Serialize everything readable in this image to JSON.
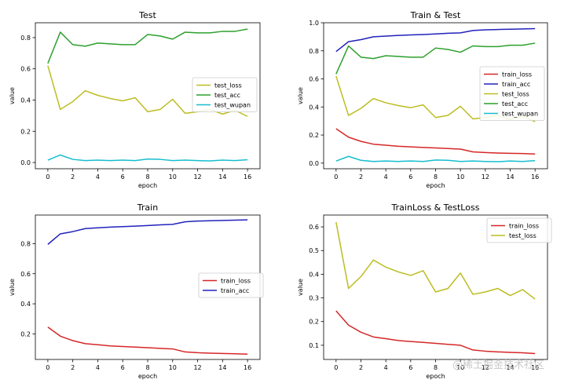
{
  "colors": {
    "train_loss": "#d62728",
    "train_acc": "#2222bb",
    "test_loss": "#bcbd22",
    "test_acc": "#2ca02c",
    "test_wupan": "#17becf"
  },
  "watermark": "@稀土掘金技术社区",
  "chart_data": [
    {
      "type": "line",
      "title": "Test",
      "xlabel": "epoch",
      "ylabel": "value",
      "xlim": [
        -1,
        17
      ],
      "ylim": [
        -0.04,
        0.895
      ],
      "xticks": [
        0,
        2,
        4,
        6,
        8,
        10,
        12,
        14,
        16
      ],
      "yticks": [
        0.0,
        0.2,
        0.4,
        0.6,
        0.8
      ],
      "ytick_labels": [
        "0.0",
        "0.2",
        "0.4",
        "0.6",
        "0.8"
      ],
      "legend_position": "center-right",
      "x": [
        0,
        1,
        2,
        3,
        4,
        5,
        6,
        7,
        8,
        9,
        10,
        11,
        12,
        13,
        14,
        15,
        16
      ],
      "series": [
        {
          "name": "test_loss",
          "color_key": "test_loss",
          "values": [
            0.62,
            0.34,
            0.39,
            0.46,
            0.43,
            0.41,
            0.395,
            0.415,
            0.325,
            0.34,
            0.405,
            0.315,
            0.325,
            0.34,
            0.31,
            0.335,
            0.295
          ]
        },
        {
          "name": "test_acc",
          "color_key": "test_acc",
          "values": [
            0.635,
            0.835,
            0.755,
            0.745,
            0.765,
            0.76,
            0.755,
            0.755,
            0.82,
            0.81,
            0.79,
            0.835,
            0.83,
            0.83,
            0.84,
            0.84,
            0.855
          ]
        },
        {
          "name": "test_wupan",
          "color_key": "test_wupan",
          "values": [
            0.015,
            0.048,
            0.02,
            0.012,
            0.015,
            0.012,
            0.015,
            0.012,
            0.022,
            0.02,
            0.012,
            0.015,
            0.012,
            0.01,
            0.015,
            0.012,
            0.018
          ]
        }
      ]
    },
    {
      "type": "line",
      "title": "Train & Test",
      "xlabel": "epoch",
      "ylabel": "value",
      "xlim": [
        -1,
        17
      ],
      "ylim": [
        -0.04,
        1.0
      ],
      "xticks": [
        0,
        2,
        4,
        6,
        8,
        10,
        12,
        14,
        16
      ],
      "yticks": [
        0.0,
        0.2,
        0.4,
        0.6,
        0.8,
        1.0
      ],
      "ytick_labels": [
        "0.0",
        "0.2",
        "0.4",
        "0.6",
        "0.8",
        "1.0"
      ],
      "legend_position": "center-right",
      "x": [
        0,
        1,
        2,
        3,
        4,
        5,
        6,
        7,
        8,
        9,
        10,
        11,
        12,
        13,
        14,
        15,
        16
      ],
      "series": [
        {
          "name": "train_loss",
          "color_key": "train_loss",
          "values": [
            0.245,
            0.185,
            0.155,
            0.135,
            0.128,
            0.12,
            0.116,
            0.112,
            0.108,
            0.104,
            0.1,
            0.08,
            0.075,
            0.072,
            0.07,
            0.068,
            0.065
          ]
        },
        {
          "name": "train_acc",
          "color_key": "train_acc",
          "values": [
            0.795,
            0.865,
            0.88,
            0.9,
            0.905,
            0.91,
            0.913,
            0.916,
            0.92,
            0.925,
            0.928,
            0.945,
            0.95,
            0.952,
            0.954,
            0.956,
            0.958
          ]
        },
        {
          "name": "test_loss",
          "color_key": "test_loss",
          "values": [
            0.62,
            0.34,
            0.39,
            0.46,
            0.43,
            0.41,
            0.395,
            0.415,
            0.325,
            0.34,
            0.405,
            0.315,
            0.325,
            0.34,
            0.31,
            0.335,
            0.295
          ]
        },
        {
          "name": "test_acc",
          "color_key": "test_acc",
          "values": [
            0.635,
            0.835,
            0.755,
            0.745,
            0.765,
            0.76,
            0.755,
            0.755,
            0.82,
            0.81,
            0.79,
            0.835,
            0.83,
            0.83,
            0.84,
            0.84,
            0.855
          ]
        },
        {
          "name": "test_wupan",
          "color_key": "test_wupan",
          "values": [
            0.015,
            0.048,
            0.02,
            0.012,
            0.015,
            0.012,
            0.015,
            0.012,
            0.022,
            0.02,
            0.012,
            0.015,
            0.012,
            0.01,
            0.015,
            0.012,
            0.018
          ]
        }
      ]
    },
    {
      "type": "line",
      "title": "Train",
      "xlabel": "epoch",
      "ylabel": "value",
      "xlim": [
        -1,
        17
      ],
      "ylim": [
        0.03,
        0.99
      ],
      "xticks": [
        0,
        2,
        4,
        6,
        8,
        10,
        12,
        14,
        16
      ],
      "yticks": [
        0.2,
        0.4,
        0.6,
        0.8
      ],
      "ytick_labels": [
        "0.2",
        "0.4",
        "0.6",
        "0.8"
      ],
      "legend_position": "center-right",
      "x": [
        0,
        1,
        2,
        3,
        4,
        5,
        6,
        7,
        8,
        9,
        10,
        11,
        12,
        13,
        14,
        15,
        16
      ],
      "series": [
        {
          "name": "train_loss",
          "color_key": "train_loss",
          "values": [
            0.245,
            0.185,
            0.155,
            0.135,
            0.128,
            0.12,
            0.116,
            0.112,
            0.108,
            0.104,
            0.1,
            0.08,
            0.075,
            0.072,
            0.07,
            0.068,
            0.065
          ]
        },
        {
          "name": "train_acc",
          "color_key": "train_acc",
          "values": [
            0.795,
            0.865,
            0.88,
            0.9,
            0.905,
            0.91,
            0.913,
            0.916,
            0.92,
            0.925,
            0.928,
            0.945,
            0.95,
            0.952,
            0.954,
            0.956,
            0.958
          ]
        }
      ]
    },
    {
      "type": "line",
      "title": "TrainLoss & TestLoss",
      "xlabel": "epoch",
      "ylabel": "value",
      "xlim": [
        -1,
        17
      ],
      "ylim": [
        0.04,
        0.65
      ],
      "xticks": [
        0,
        2,
        4,
        6,
        8,
        10,
        12,
        14,
        16
      ],
      "yticks": [
        0.1,
        0.2,
        0.3,
        0.4,
        0.5,
        0.6
      ],
      "ytick_labels": [
        "0.1",
        "0.2",
        "0.3",
        "0.4",
        "0.5",
        "0.6"
      ],
      "legend_position": "top-right",
      "x": [
        0,
        1,
        2,
        3,
        4,
        5,
        6,
        7,
        8,
        9,
        10,
        11,
        12,
        13,
        14,
        15,
        16
      ],
      "series": [
        {
          "name": "train_loss",
          "color_key": "train_loss",
          "values": [
            0.245,
            0.185,
            0.155,
            0.135,
            0.128,
            0.12,
            0.116,
            0.112,
            0.108,
            0.104,
            0.1,
            0.08,
            0.075,
            0.072,
            0.07,
            0.068,
            0.065
          ]
        },
        {
          "name": "test_loss",
          "color_key": "test_loss",
          "values": [
            0.62,
            0.34,
            0.39,
            0.46,
            0.43,
            0.41,
            0.395,
            0.415,
            0.325,
            0.34,
            0.405,
            0.315,
            0.325,
            0.34,
            0.31,
            0.335,
            0.295
          ]
        }
      ]
    }
  ]
}
